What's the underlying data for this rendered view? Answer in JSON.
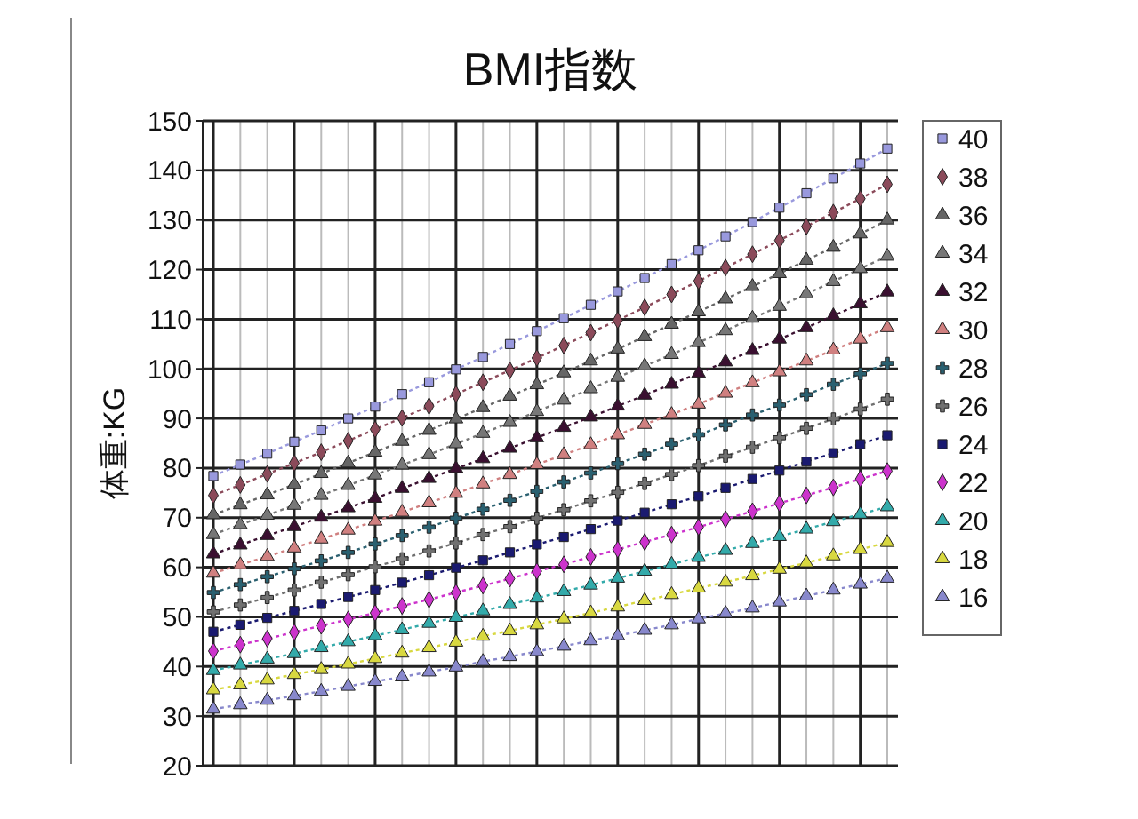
{
  "chart_data": {
    "type": "line",
    "title": "BMI指数",
    "ylabel": "体重:KG",
    "categories": [
      null,
      null,
      null,
      null,
      null,
      null,
      null,
      null,
      null,
      null,
      null,
      null,
      null,
      null,
      null,
      null,
      null,
      null,
      null,
      null,
      null,
      null,
      null,
      null,
      null,
      null
    ],
    "ylim": [
      20,
      150
    ],
    "yticks": [
      20,
      30,
      40,
      50,
      60,
      70,
      80,
      90,
      100,
      110,
      120,
      130,
      140,
      150
    ],
    "grid": true,
    "legend": "right",
    "tick_labels": "y",
    "line_style": "dotted",
    "series": [
      {
        "name": "40",
        "color": "#9999dd",
        "marker": "square",
        "values": [
          78.4,
          80.7,
          82.9,
          85.3,
          87.6,
          90.0,
          92.4,
          94.9,
          97.3,
          99.9,
          102.4,
          105.0,
          107.6,
          110.2,
          112.9,
          115.6,
          118.3,
          121.1,
          123.9,
          126.7,
          129.6,
          132.5,
          135.4,
          138.4,
          141.4,
          144.4
        ]
      },
      {
        "name": "38",
        "color": "#8b4a5a",
        "marker": "diamond",
        "values": [
          74.5,
          76.6,
          78.8,
          81.0,
          83.2,
          85.5,
          87.8,
          90.1,
          92.5,
          94.9,
          97.3,
          99.7,
          102.2,
          104.7,
          107.3,
          109.8,
          112.4,
          115.0,
          117.7,
          120.4,
          123.1,
          125.9,
          128.7,
          131.5,
          134.3,
          137.2
        ]
      },
      {
        "name": "36",
        "color": "#666666",
        "marker": "triangle",
        "values": [
          70.6,
          72.6,
          74.6,
          76.7,
          78.9,
          81.0,
          83.2,
          85.4,
          87.6,
          89.9,
          92.2,
          94.5,
          96.8,
          99.2,
          101.6,
          104.0,
          106.5,
          109.0,
          111.5,
          114.1,
          116.6,
          119.2,
          121.9,
          124.5,
          127.2,
          130.0
        ]
      },
      {
        "name": "34",
        "color": "#777777",
        "marker": "triangle",
        "values": [
          66.6,
          68.6,
          70.5,
          72.5,
          74.5,
          76.5,
          78.6,
          80.6,
          82.7,
          84.9,
          87.0,
          89.2,
          91.4,
          93.7,
          96.0,
          98.3,
          100.6,
          102.9,
          105.3,
          107.7,
          110.2,
          112.6,
          115.1,
          117.6,
          120.2,
          122.7
        ]
      },
      {
        "name": "32",
        "color": "#3a1030",
        "marker": "triangle",
        "values": [
          62.7,
          64.5,
          66.4,
          68.2,
          70.1,
          72.0,
          73.9,
          75.9,
          77.9,
          79.9,
          81.9,
          84.0,
          86.1,
          88.2,
          90.3,
          92.5,
          94.7,
          96.9,
          99.1,
          101.4,
          103.7,
          106.0,
          108.3,
          110.7,
          113.1,
          115.5
        ]
      },
      {
        "name": "30",
        "color": "#d08080",
        "marker": "triangle",
        "values": [
          58.8,
          60.5,
          62.2,
          63.9,
          65.7,
          67.5,
          69.3,
          71.1,
          73.0,
          74.9,
          76.8,
          78.7,
          80.7,
          82.7,
          84.7,
          86.7,
          88.8,
          90.8,
          92.9,
          95.1,
          97.2,
          99.4,
          101.6,
          103.8,
          106.0,
          108.3
        ]
      },
      {
        "name": "28",
        "color": "#2a6070",
        "marker": "cross",
        "values": [
          54.9,
          56.5,
          58.1,
          59.7,
          61.3,
          63.0,
          64.7,
          66.4,
          68.1,
          69.9,
          71.7,
          73.5,
          75.3,
          77.2,
          79.0,
          80.9,
          82.8,
          84.8,
          86.7,
          88.7,
          90.7,
          92.7,
          94.8,
          96.9,
          99.0,
          101.1
        ]
      },
      {
        "name": "26",
        "color": "#707070",
        "marker": "cross",
        "values": [
          51.0,
          52.4,
          53.9,
          55.4,
          57.0,
          58.5,
          60.1,
          61.7,
          63.3,
          64.9,
          66.6,
          68.2,
          69.9,
          71.6,
          73.4,
          75.1,
          76.9,
          78.7,
          80.5,
          82.4,
          84.2,
          86.1,
          88.0,
          89.9,
          91.9,
          93.9
        ]
      },
      {
        "name": "24",
        "color": "#1a1a70",
        "marker": "square",
        "values": [
          47.0,
          48.4,
          49.8,
          51.2,
          52.6,
          54.0,
          55.4,
          56.9,
          58.4,
          59.9,
          61.4,
          63.0,
          64.6,
          66.1,
          67.7,
          69.4,
          71.0,
          72.7,
          74.3,
          76.0,
          77.8,
          79.5,
          81.3,
          83.0,
          84.8,
          86.6
        ]
      },
      {
        "name": "22",
        "color": "#cc33cc",
        "marker": "diamond",
        "values": [
          43.1,
          44.4,
          45.6,
          46.9,
          48.2,
          49.5,
          50.8,
          52.2,
          53.5,
          54.9,
          56.3,
          57.7,
          59.2,
          60.6,
          62.1,
          63.6,
          65.1,
          66.6,
          68.1,
          69.7,
          71.3,
          72.9,
          74.5,
          76.1,
          77.8,
          79.4
        ]
      },
      {
        "name": "20",
        "color": "#33aaaa",
        "marker": "triangle",
        "values": [
          39.2,
          40.3,
          41.5,
          42.6,
          43.8,
          45.0,
          46.2,
          47.4,
          48.7,
          49.9,
          51.2,
          52.5,
          53.8,
          55.1,
          56.4,
          57.8,
          59.2,
          60.6,
          62.0,
          63.4,
          64.8,
          66.2,
          67.7,
          69.2,
          70.7,
          72.2
        ]
      },
      {
        "name": "18",
        "color": "#d8d840",
        "marker": "triangle",
        "values": [
          35.3,
          36.3,
          37.3,
          38.4,
          39.4,
          40.5,
          41.6,
          42.7,
          43.8,
          44.9,
          46.1,
          47.2,
          48.4,
          49.6,
          50.8,
          52.0,
          53.3,
          54.5,
          55.8,
          57.0,
          58.3,
          59.6,
          60.9,
          62.3,
          63.6,
          65.0
        ]
      },
      {
        "name": "16",
        "color": "#8888cc",
        "marker": "triangle",
        "values": [
          31.4,
          32.3,
          33.2,
          34.1,
          35.0,
          36.0,
          37.0,
          37.9,
          38.9,
          39.9,
          41.0,
          42.0,
          43.0,
          44.1,
          45.2,
          46.2,
          47.3,
          48.4,
          49.6,
          50.7,
          51.8,
          53.0,
          54.2,
          55.4,
          56.6,
          57.8
        ]
      }
    ]
  }
}
